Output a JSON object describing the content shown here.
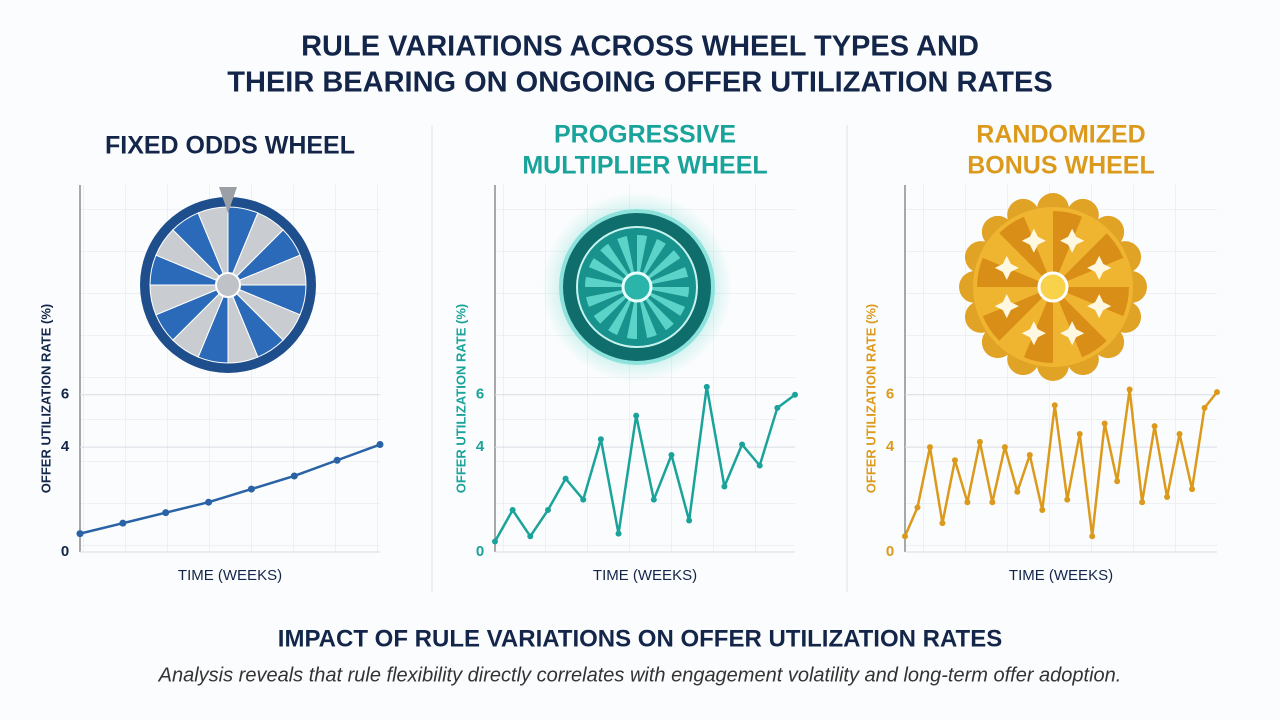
{
  "header": {
    "title": [
      "RULE VARIATIONS ACROSS WHEEL TYPES AND",
      "THEIR BEARING ON ONGOING OFFER UTILIZATION RATES"
    ]
  },
  "chart_data": [
    {
      "type": "line",
      "title": [
        "FIXED ODDS WHEEL"
      ],
      "ylabel": "OFFER UTILIZATION RATE (%)",
      "xlabel": "TIME (WEEKS)",
      "ylim": [
        0,
        14
      ],
      "yticks": [
        6,
        4,
        0
      ],
      "grid": true,
      "color": "#2a62a6",
      "values": [
        0.7,
        1.1,
        1.5,
        1.9,
        2.4,
        2.9,
        3.5,
        4.1
      ]
    },
    {
      "type": "line",
      "title": [
        "PROGRESSIVE",
        "MULTIPLIER WHEEL"
      ],
      "ylabel": "OFFER UTILIZATION RATE (%)",
      "xlabel": "TIME (WEEKS)",
      "ylim": [
        0,
        14
      ],
      "yticks": [
        6,
        4,
        0
      ],
      "grid": true,
      "color": "#1aa39a",
      "values": [
        0.4,
        1.6,
        0.6,
        1.6,
        2.8,
        2.0,
        4.3,
        0.7,
        5.2,
        2.0,
        3.7,
        1.2,
        6.3,
        2.5,
        4.1,
        3.3,
        5.5,
        6.0
      ]
    },
    {
      "type": "line",
      "title": [
        "RANDOMIZED",
        "BONUS WHEEL"
      ],
      "ylabel": "OFFER UTILIZATION RATE (%)",
      "xlabel": "TIME (WEEKS)",
      "ylim": [
        0,
        14
      ],
      "yticks": [
        6,
        4,
        0
      ],
      "grid": true,
      "color": "#dc9a1c",
      "values": [
        0.6,
        1.7,
        4.0,
        1.1,
        3.5,
        1.9,
        4.2,
        1.9,
        4.0,
        2.3,
        3.7,
        1.6,
        5.6,
        2.0,
        4.5,
        0.6,
        4.9,
        2.7,
        6.2,
        1.9,
        4.8,
        2.1,
        4.5,
        2.4,
        5.5,
        6.1
      ]
    }
  ],
  "footer": {
    "heading": "IMPACT OF RULE VARIATIONS ON OFFER UTILIZATION RATES",
    "text": "Analysis reveals that rule flexibility directly correlates with engagement volatility and long-term offer adoption."
  }
}
